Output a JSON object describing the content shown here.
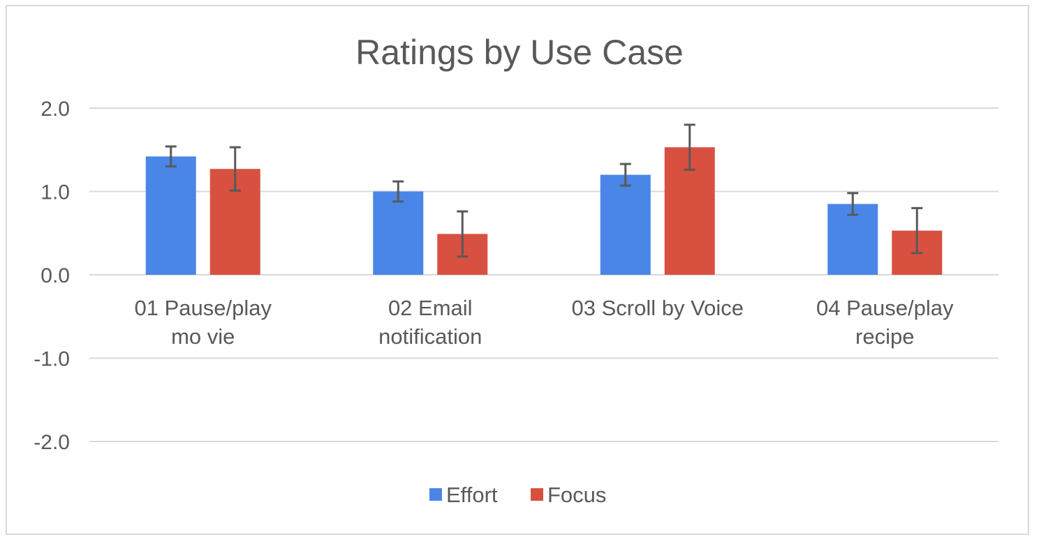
{
  "chart_data": {
    "type": "bar",
    "title": "Ratings by Use Case",
    "categories": [
      [
        "01 Pause/play",
        "mo vie"
      ],
      [
        "02 Email",
        "notification"
      ],
      [
        "03 Scroll by Voice"
      ],
      [
        "04 Pause/play",
        "recipe"
      ]
    ],
    "series": [
      {
        "name": "Effort",
        "color": "#4a86e8",
        "values": [
          1.42,
          1.0,
          1.2,
          0.85
        ],
        "error": [
          0.12,
          0.12,
          0.13,
          0.13
        ]
      },
      {
        "name": "Focus",
        "color": "#d85040",
        "values": [
          1.27,
          0.49,
          1.53,
          0.53
        ],
        "error": [
          0.26,
          0.27,
          0.27,
          0.27
        ]
      }
    ],
    "ylim": [
      -2.0,
      2.0
    ],
    "yticks": [
      "2.0",
      "1.0",
      "0.0",
      "-1.0",
      "-2.0"
    ],
    "ytick_values": [
      2.0,
      1.0,
      0.0,
      -1.0,
      -2.0
    ],
    "grid": true,
    "legend_position": "bottom",
    "error_bar_color": "#595959"
  }
}
